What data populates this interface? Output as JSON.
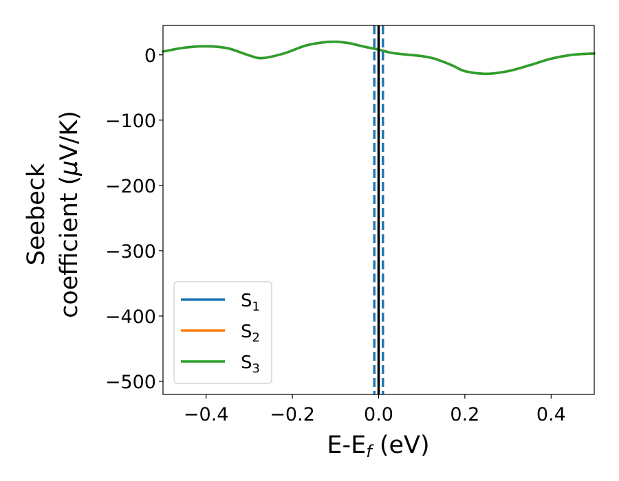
{
  "chart_data": {
    "type": "line",
    "xlabel": {
      "main": "E-E",
      "sub": "f",
      "unit": " (eV)"
    },
    "ylabel": {
      "line1": "Seebeck",
      "line2_pre": "coefficient  (",
      "mu": "μ",
      "line2_post": "V/K)"
    },
    "xlim": [
      -0.5,
      0.5
    ],
    "ylim": [
      -520,
      45
    ],
    "xticks": [
      {
        "v": -0.4,
        "label": "−0.4"
      },
      {
        "v": -0.2,
        "label": "−0.2"
      },
      {
        "v": 0.0,
        "label": "0.0"
      },
      {
        "v": 0.2,
        "label": "0.2"
      },
      {
        "v": 0.4,
        "label": "0.4"
      }
    ],
    "yticks": [
      {
        "v": 0,
        "label": "0"
      },
      {
        "v": -100,
        "label": "−100"
      },
      {
        "v": -200,
        "label": "−200"
      },
      {
        "v": -300,
        "label": "−300"
      },
      {
        "v": -400,
        "label": "−400"
      },
      {
        "v": -500,
        "label": "−500"
      }
    ],
    "vlines": [
      {
        "x": 0.0,
        "style": "solid",
        "color": "#000000"
      },
      {
        "x": -0.01,
        "style": "dashed",
        "color": "#1f77b4"
      },
      {
        "x": 0.01,
        "style": "dashed",
        "color": "#1f77b4"
      }
    ],
    "legend_position": "lower-left",
    "series": [
      {
        "name": "S",
        "sub": "1",
        "color": "#1f77b4",
        "x": [
          -0.5,
          -0.45,
          -0.4,
          -0.35,
          -0.3,
          -0.27,
          -0.22,
          -0.17,
          -0.13,
          -0.1,
          -0.07,
          -0.03,
          0.0,
          0.03,
          0.07,
          0.1,
          0.13,
          0.17,
          0.2,
          0.25,
          0.3,
          0.35,
          0.4,
          0.45,
          0.5
        ],
        "y": [
          5,
          11,
          13,
          10,
          -1,
          -5,
          2,
          14,
          19,
          20,
          18,
          12,
          8,
          3,
          0,
          -2,
          -6,
          -16,
          -25,
          -29,
          -25,
          -16,
          -6,
          0,
          2
        ]
      },
      {
        "name": "S",
        "sub": "2",
        "color": "#ff7f0e",
        "x": [
          -0.5,
          -0.45,
          -0.4,
          -0.35,
          -0.3,
          -0.27,
          -0.22,
          -0.17,
          -0.13,
          -0.1,
          -0.07,
          -0.03,
          0.0,
          0.03,
          0.07,
          0.1,
          0.13,
          0.17,
          0.2,
          0.25,
          0.3,
          0.35,
          0.4,
          0.45,
          0.5
        ],
        "y": [
          5,
          11,
          13,
          10,
          -1,
          -5,
          2,
          14,
          19,
          20,
          18,
          12,
          8,
          3,
          0,
          -2,
          -6,
          -16,
          -25,
          -29,
          -25,
          -16,
          -6,
          0,
          2
        ]
      },
      {
        "name": "S",
        "sub": "3",
        "color": "#2ca02c",
        "x": [
          -0.5,
          -0.45,
          -0.4,
          -0.35,
          -0.3,
          -0.27,
          -0.22,
          -0.17,
          -0.13,
          -0.1,
          -0.07,
          -0.03,
          0.0,
          0.03,
          0.07,
          0.1,
          0.13,
          0.17,
          0.2,
          0.25,
          0.3,
          0.35,
          0.4,
          0.45,
          0.5
        ],
        "y": [
          5,
          11,
          13,
          10,
          -1,
          -5,
          2,
          14,
          19,
          20,
          18,
          12,
          8,
          3,
          0,
          -2,
          -6,
          -16,
          -25,
          -29,
          -25,
          -16,
          -6,
          0,
          2
        ]
      }
    ]
  }
}
